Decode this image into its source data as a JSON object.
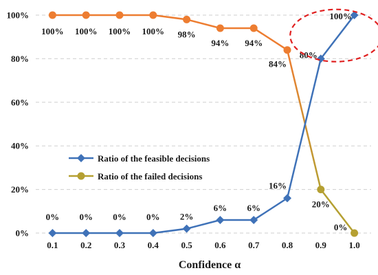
{
  "chart_data": {
    "type": "line",
    "x": [
      "0.1",
      "0.2",
      "0.3",
      "0.4",
      "0.5",
      "0.6",
      "0.7",
      "0.8",
      "0.9",
      "1.0"
    ],
    "xlabel": "Confidence α",
    "ylabel": "",
    "title": "",
    "ylim": [
      0,
      100
    ],
    "yticks": [
      0,
      20,
      40,
      60,
      80,
      100
    ],
    "ytick_labels": [
      "0%",
      "20%",
      "40%",
      "60%",
      "80%",
      "100%"
    ],
    "grid": "horizontal dashed",
    "legend": "center-left",
    "series": [
      {
        "name": "Ratio of the feasible decisions",
        "marker": "diamond",
        "color": "#3f72b8",
        "values": [
          0,
          0,
          0,
          0,
          2,
          6,
          6,
          16,
          80,
          100
        ],
        "labels": [
          "0%",
          "0%",
          "0%",
          "0%",
          "2%",
          "6%",
          "6%",
          "16%",
          "80%",
          "100%"
        ]
      },
      {
        "name": "Ratio of the failed decisions",
        "marker": "circle",
        "color": "#ed7d31",
        "tail_color": "#b5a032",
        "values": [
          100,
          100,
          100,
          100,
          98,
          94,
          94,
          84,
          20,
          0
        ],
        "labels": [
          "100%",
          "100%",
          "100%",
          "100%",
          "98%",
          "94%",
          "94%",
          "84%",
          "20%",
          "0%"
        ]
      }
    ],
    "annotation": {
      "type": "dashed-ellipse",
      "color": "#e02020",
      "around": "last two feasible points"
    }
  }
}
